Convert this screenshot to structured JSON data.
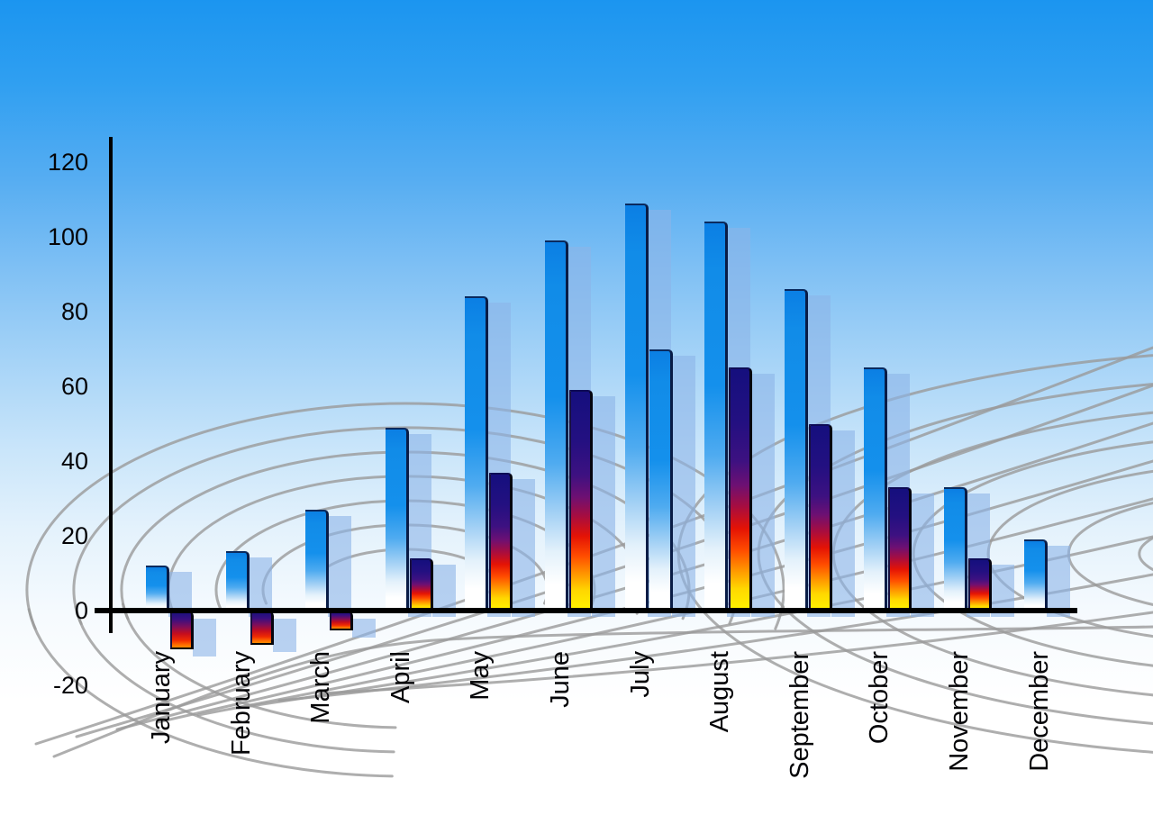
{
  "chart_data": {
    "type": "bar",
    "title": "",
    "categories": [
      "January",
      "February",
      "March",
      "April",
      "May",
      "June",
      "July",
      "August",
      "September",
      "October",
      "November",
      "December"
    ],
    "series": [
      {
        "name": "primary-blue-bars",
        "color": "#1490ec",
        "values": [
          12,
          16,
          27,
          49,
          84,
          99,
          109,
          104,
          86,
          65,
          33,
          19
        ]
      },
      {
        "name": "secondary-fire-bars",
        "color_gradient": [
          "#150f7e",
          "#e41305",
          "#fff400"
        ],
        "values": [
          -10,
          -9,
          -5,
          14,
          37,
          59,
          70,
          65,
          50,
          33,
          14,
          null
        ],
        "styles": [
          "fire",
          "fire",
          "fire",
          "fire",
          "fire",
          "fire",
          "blue",
          "fire",
          "fire",
          "fire",
          "fire",
          null
        ]
      }
    ],
    "xlabel": "",
    "ylabel": "",
    "ylim": [
      -20,
      120
    ],
    "y_ticks": [
      120,
      100,
      80,
      60,
      40,
      20,
      0,
      -20
    ],
    "y_tick_labels": [
      "120",
      "100",
      "80",
      "60",
      "40",
      "20",
      "0",
      "-20"
    ],
    "x_tick_rotation_deg": -90,
    "legend": "none",
    "grid": "decorative curved gray net behind bars",
    "bar_shadow": "translucent light-blue echo offset right of every bar"
  },
  "colors": {
    "background_top": "#1b95f0",
    "background_bottom": "#ffffff",
    "axis": "#000000",
    "text": "#050508",
    "grid_line": "#9a9a9a",
    "echo_bar": "rgba(140,180,232,0.60)",
    "bar_blue_top": "#0b7fe4",
    "fire_navy": "#150f7e",
    "fire_red": "#e41305",
    "fire_yellow": "#fff400"
  }
}
